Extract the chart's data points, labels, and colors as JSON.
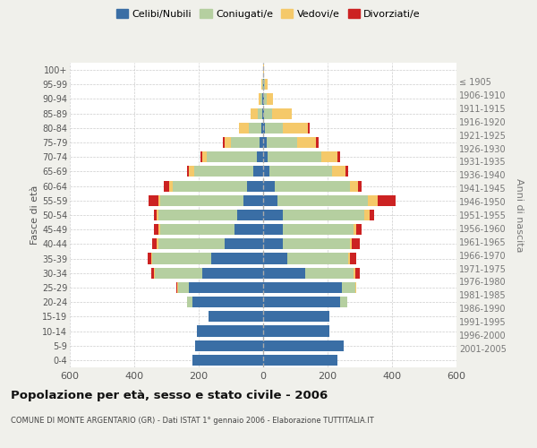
{
  "age_groups": [
    "0-4",
    "5-9",
    "10-14",
    "15-19",
    "20-24",
    "25-29",
    "30-34",
    "35-39",
    "40-44",
    "45-49",
    "50-54",
    "55-59",
    "60-64",
    "65-69",
    "70-74",
    "75-79",
    "80-84",
    "85-89",
    "90-94",
    "95-99",
    "100+"
  ],
  "birth_years": [
    "2001-2005",
    "1996-2000",
    "1991-1995",
    "1986-1990",
    "1981-1985",
    "1976-1980",
    "1971-1975",
    "1966-1970",
    "1961-1965",
    "1956-1960",
    "1951-1955",
    "1946-1950",
    "1941-1945",
    "1936-1940",
    "1931-1935",
    "1926-1930",
    "1921-1925",
    "1916-1920",
    "1911-1915",
    "1906-1910",
    "≤ 1905"
  ],
  "colors": {
    "celibe": "#3a6ea5",
    "coniugato": "#b5cfa0",
    "vedovo": "#f5c96a",
    "divorziato": "#cc2222"
  },
  "males": {
    "celibe": [
      220,
      210,
      205,
      170,
      220,
      230,
      190,
      160,
      120,
      90,
      80,
      60,
      50,
      30,
      20,
      10,
      5,
      3,
      2,
      1,
      0
    ],
    "coniugato": [
      0,
      0,
      0,
      0,
      15,
      35,
      145,
      185,
      205,
      230,
      245,
      260,
      230,
      185,
      155,
      90,
      40,
      15,
      5,
      2,
      0
    ],
    "vedovo": [
      0,
      0,
      0,
      0,
      2,
      2,
      3,
      3,
      5,
      5,
      5,
      5,
      12,
      15,
      15,
      20,
      30,
      20,
      8,
      2,
      0
    ],
    "divorziato": [
      0,
      0,
      0,
      0,
      0,
      2,
      10,
      10,
      15,
      15,
      10,
      30,
      15,
      5,
      5,
      5,
      0,
      0,
      0,
      0,
      0
    ]
  },
  "females": {
    "nubile": [
      230,
      250,
      205,
      205,
      240,
      245,
      130,
      75,
      60,
      60,
      60,
      45,
      35,
      20,
      15,
      10,
      5,
      3,
      2,
      2,
      0
    ],
    "coniugata": [
      0,
      0,
      0,
      0,
      20,
      40,
      150,
      190,
      210,
      220,
      255,
      280,
      235,
      195,
      165,
      95,
      55,
      25,
      8,
      3,
      0
    ],
    "vedova": [
      0,
      0,
      0,
      0,
      2,
      3,
      5,
      5,
      5,
      10,
      15,
      30,
      25,
      40,
      50,
      60,
      80,
      60,
      20,
      10,
      2
    ],
    "divorziata": [
      0,
      0,
      0,
      0,
      0,
      2,
      15,
      20,
      25,
      15,
      15,
      55,
      10,
      8,
      10,
      8,
      5,
      2,
      0,
      0,
      0
    ]
  },
  "xlim": 600,
  "title": "Popolazione per età, sesso e stato civile - 2006",
  "subtitle": "COMUNE DI MONTE ARGENTARIO (GR) - Dati ISTAT 1° gennaio 2006 - Elaborazione TUTTITALIA.IT",
  "ylabel_left": "Fasce di età",
  "ylabel_right": "Anni di nascita",
  "legend_labels": [
    "Celibi/Nubili",
    "Coniugati/e",
    "Vedovi/e",
    "Divorziati/e"
  ],
  "bg_color": "#f0f0eb",
  "plot_bg": "#ffffff",
  "grid_color": "#cccccc"
}
